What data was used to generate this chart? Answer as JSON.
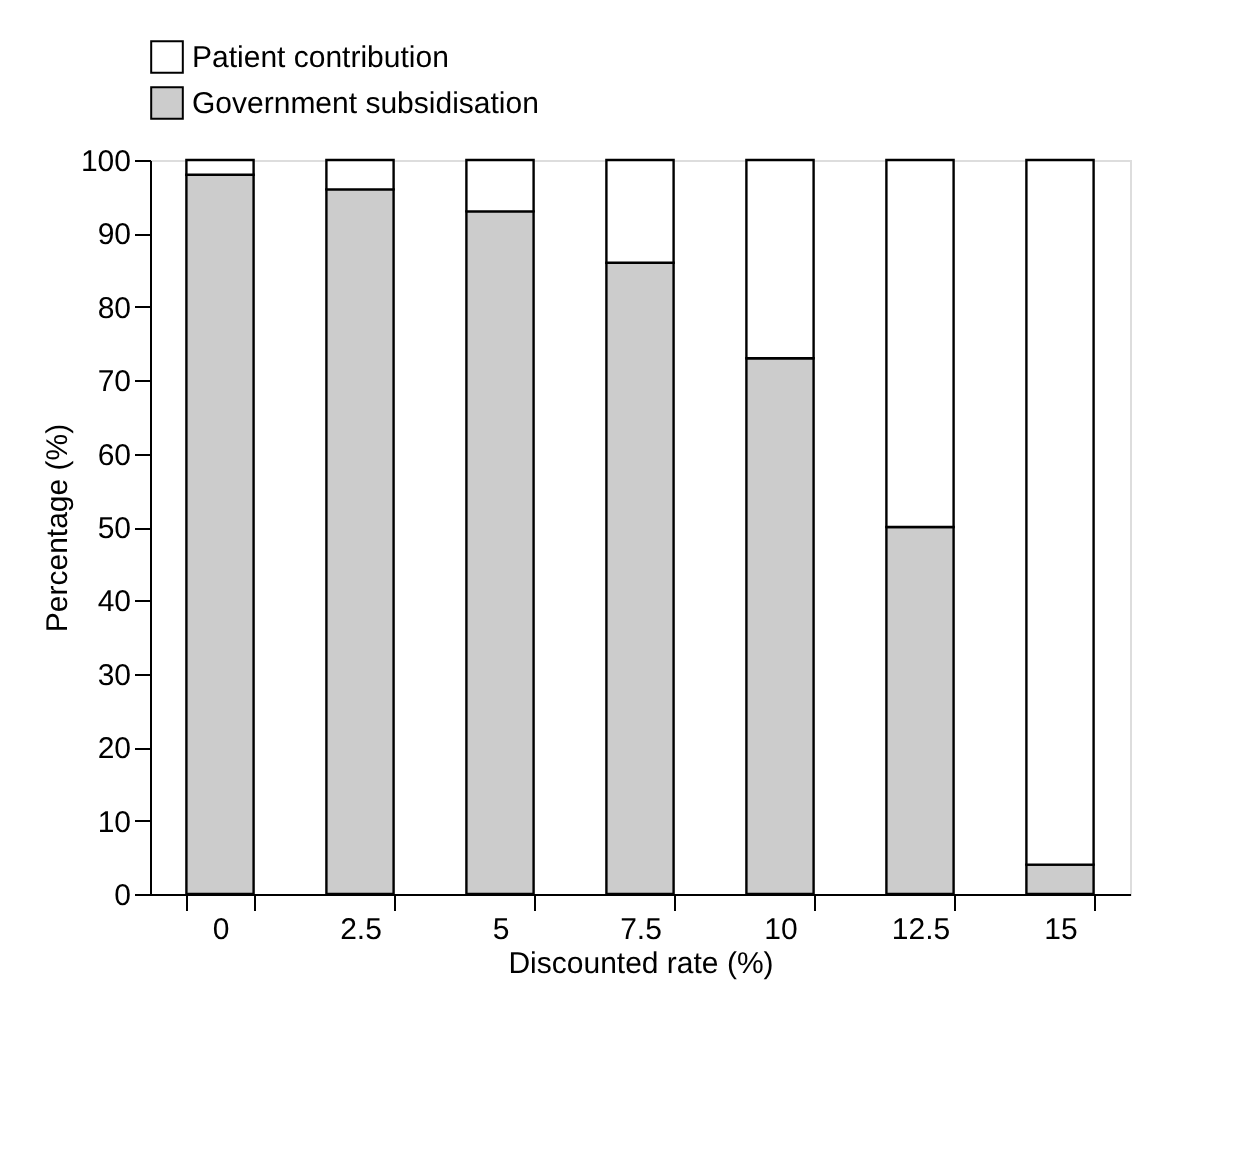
{
  "chart_data": {
    "type": "bar",
    "stacked": true,
    "xlabel": "Discounted rate (%)",
    "ylabel": "Percentage (%)",
    "categories": [
      "0",
      "2.5",
      "5",
      "7.5",
      "10",
      "12.5",
      "15"
    ],
    "series": [
      {
        "name": "Government subsidisation",
        "color": "#cccccc",
        "values": [
          98,
          96,
          93,
          86,
          73,
          50,
          4
        ]
      },
      {
        "name": "Patient contribution",
        "color": "#ffffff",
        "values": [
          2,
          4,
          7,
          14,
          27,
          50,
          96
        ]
      }
    ],
    "ylim": [
      0,
      100
    ],
    "yticks": [
      0,
      10,
      20,
      30,
      40,
      50,
      60,
      70,
      80,
      90,
      100
    ],
    "grid": false,
    "legend": "top"
  }
}
